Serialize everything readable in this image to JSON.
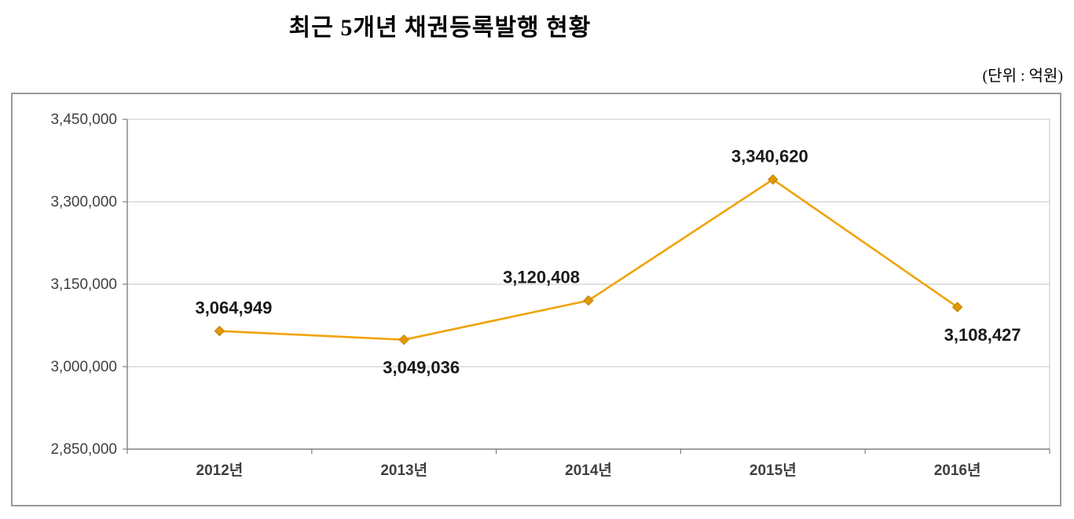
{
  "title": "최근 5개년 채권등록발행 현황",
  "unit_label": "(단위 : 억원)",
  "chart_data": {
    "type": "line",
    "title": "최근 5개년 채권등록발행 현황",
    "unit": "(단위 : 억원)",
    "categories": [
      "2012년",
      "2013년",
      "2014년",
      "2015년",
      "2016년"
    ],
    "series": [
      {
        "name": "채권등록발행",
        "values": [
          3064949,
          3049036,
          3120408,
          3340620,
          3108427
        ],
        "labels": [
          "3,064,949",
          "3,049,036",
          "3,120,408",
          "3,340,620",
          "3,108,427"
        ]
      }
    ],
    "label_positions": [
      {
        "pos": "above",
        "dx": 18
      },
      {
        "pos": "below",
        "dx": 22
      },
      {
        "pos": "above",
        "dx": -60
      },
      {
        "pos": "above",
        "dx": -4
      },
      {
        "pos": "below",
        "dx": 32
      }
    ],
    "ylim": [
      2850000,
      3450000
    ],
    "yticks": [
      2850000,
      3000000,
      3150000,
      3300000,
      3450000
    ],
    "ytick_labels": [
      "2,850,000",
      "3,000,000",
      "3,150,000",
      "3,300,000",
      "3,450,000"
    ],
    "grid": true,
    "legend": "none",
    "line_color": "#F0A30A",
    "marker_fill": "#E39802",
    "marker_stroke": "#C07F00",
    "marker": "diamond",
    "data_label_color": "#1a1a1a",
    "axis_text_color": "#3f3f3f",
    "grid_color": "#c6c6c6",
    "axis_color": "#808080"
  }
}
